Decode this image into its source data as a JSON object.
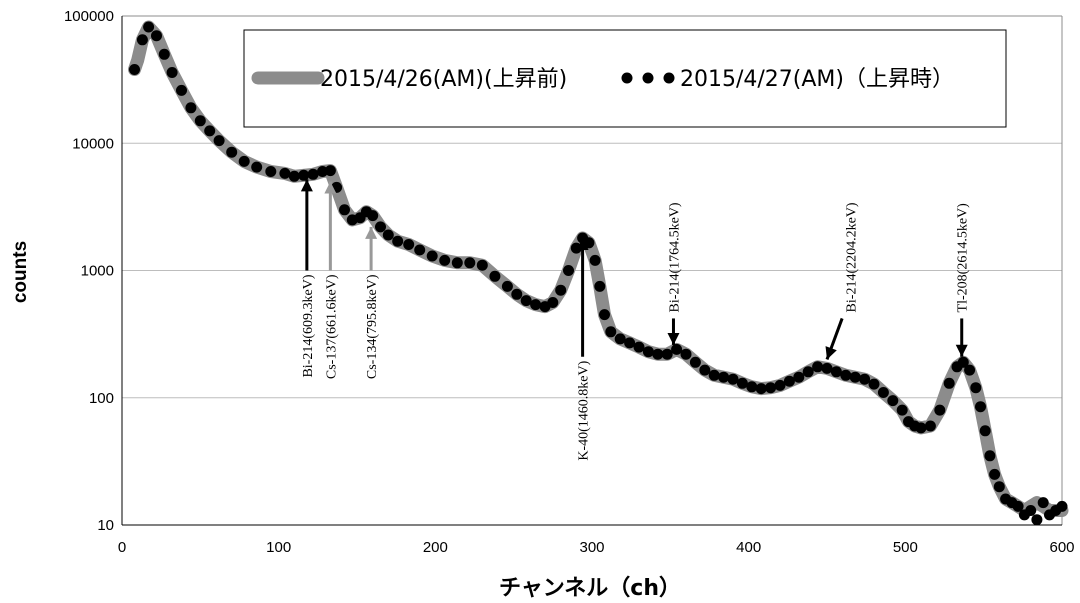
{
  "chart_data": {
    "type": "scatter",
    "title": "",
    "xlabel": "チャンネル（ch）",
    "ylabel": "counts",
    "xlim": [
      0,
      600
    ],
    "ylim": [
      10,
      100000
    ],
    "y_scale": "log",
    "grid": "horizontal",
    "legend_position": "top",
    "x_ticks": [
      "0",
      "100",
      "200",
      "300",
      "400",
      "500",
      "600"
    ],
    "y_ticks": [
      "10",
      "100",
      "1000",
      "10000",
      "100000"
    ],
    "colors": {
      "series1": "#8c8c8c",
      "series2": "#000000",
      "arrow_gray": "#999999",
      "arrow_black": "#000000",
      "grid": "#bdbdbd"
    },
    "series": [
      {
        "name": "2015/4/26(AM)(上昇前)",
        "style": "thick-line",
        "x": [
          8,
          10,
          13,
          17,
          22,
          27,
          32,
          38,
          44,
          50,
          56,
          62,
          70,
          78,
          86,
          95,
          104,
          110,
          116,
          122,
          128,
          133,
          137,
          142,
          147,
          152,
          156,
          160,
          165,
          170,
          176,
          183,
          190,
          198,
          206,
          214,
          222,
          230,
          238,
          246,
          252,
          258,
          264,
          270,
          275,
          280,
          285,
          290,
          294,
          298,
          302,
          305,
          308,
          312,
          318,
          324,
          330,
          336,
          342,
          348,
          354,
          360,
          366,
          372,
          378,
          384,
          390,
          396,
          402,
          408,
          414,
          420,
          426,
          432,
          438,
          444,
          450,
          456,
          462,
          468,
          474,
          480,
          486,
          492,
          498,
          502,
          506,
          510,
          516,
          522,
          528,
          533,
          537,
          541,
          545,
          548,
          551,
          554,
          557,
          560,
          564,
          568,
          572,
          576,
          580,
          584,
          588,
          592,
          596,
          600
        ],
        "values": [
          38000,
          45000,
          65000,
          82000,
          70000,
          50000,
          36000,
          26000,
          19000,
          15000,
          12500,
          10500,
          8500,
          7200,
          6500,
          6000,
          5800,
          5500,
          5600,
          5700,
          6000,
          6100,
          4500,
          3000,
          2500,
          2600,
          2900,
          2700,
          2200,
          1900,
          1700,
          1600,
          1450,
          1300,
          1200,
          1150,
          1150,
          1100,
          900,
          750,
          650,
          580,
          540,
          520,
          560,
          700,
          1000,
          1500,
          1800,
          1650,
          1200,
          750,
          450,
          330,
          290,
          270,
          250,
          230,
          220,
          220,
          240,
          220,
          190,
          165,
          150,
          145,
          140,
          130,
          122,
          118,
          120,
          125,
          135,
          145,
          160,
          175,
          170,
          160,
          150,
          145,
          140,
          128,
          110,
          95,
          80,
          65,
          60,
          58,
          60,
          80,
          130,
          175,
          190,
          165,
          120,
          85,
          55,
          35,
          25,
          20,
          16,
          15,
          14,
          13,
          14,
          15,
          14,
          13,
          13,
          13
        ]
      },
      {
        "name": "2015/4/27(AM)（上昇時）",
        "style": "dots",
        "x": [
          8,
          13,
          17,
          22,
          27,
          32,
          38,
          44,
          50,
          56,
          62,
          70,
          78,
          86,
          95,
          104,
          110,
          116,
          122,
          128,
          133,
          137,
          142,
          147,
          152,
          156,
          160,
          165,
          170,
          176,
          183,
          190,
          198,
          206,
          214,
          222,
          230,
          238,
          246,
          252,
          258,
          264,
          270,
          275,
          280,
          285,
          290,
          294,
          298,
          302,
          305,
          308,
          312,
          318,
          324,
          330,
          336,
          342,
          348,
          354,
          360,
          366,
          372,
          378,
          384,
          390,
          396,
          402,
          408,
          414,
          420,
          426,
          432,
          438,
          444,
          450,
          456,
          462,
          468,
          474,
          480,
          486,
          492,
          498,
          502,
          506,
          510,
          516,
          522,
          528,
          533,
          537,
          541,
          545,
          548,
          551,
          554,
          557,
          560,
          564,
          568,
          572,
          576,
          580,
          584,
          588,
          592,
          596,
          600
        ],
        "values": [
          38000,
          65000,
          82000,
          70000,
          50000,
          36000,
          26000,
          19000,
          15000,
          12500,
          10500,
          8500,
          7200,
          6500,
          6000,
          5800,
          5500,
          5600,
          5700,
          6000,
          6100,
          4500,
          3000,
          2500,
          2600,
          2900,
          2700,
          2200,
          1900,
          1700,
          1600,
          1450,
          1300,
          1200,
          1150,
          1150,
          1100,
          900,
          750,
          650,
          580,
          540,
          520,
          560,
          700,
          1000,
          1500,
          1800,
          1650,
          1200,
          750,
          450,
          330,
          290,
          270,
          250,
          230,
          220,
          220,
          240,
          220,
          190,
          165,
          150,
          145,
          140,
          130,
          122,
          118,
          120,
          125,
          135,
          145,
          160,
          175,
          170,
          160,
          150,
          145,
          140,
          128,
          110,
          95,
          80,
          65,
          60,
          58,
          60,
          80,
          130,
          175,
          190,
          165,
          120,
          85,
          55,
          35,
          25,
          20,
          16,
          15,
          14,
          12,
          13,
          11,
          15,
          12,
          13,
          14
        ]
      }
    ],
    "annotations": [
      {
        "text": "Bi-214(609.3keV)",
        "arrow_x": 118,
        "arrow_tail": 1000,
        "arrow_head": 5200,
        "color": "black",
        "label_x": 118
      },
      {
        "text": "Cs-137(661.6keV)",
        "arrow_x": 133,
        "arrow_tail": 1000,
        "arrow_head": 5000,
        "color": "gray",
        "label_x": 133
      },
      {
        "text": "Cs-134(795.8keV)",
        "arrow_x": 159,
        "arrow_tail": 1000,
        "arrow_head": 2200,
        "color": "gray",
        "label_x": 159
      },
      {
        "text": "K-40(1460.8keV)",
        "arrow_x": 294,
        "arrow_tail": 210,
        "arrow_head": 1800,
        "color": "black",
        "label_x": 294
      },
      {
        "text": "Bi-214(1764.5keV)",
        "arrow_x": 352,
        "arrow_tail": 420,
        "arrow_head": 260,
        "color": "black",
        "label_x": 352
      },
      {
        "text": "Bi-214(2204.2keV)",
        "arrow_x": 450,
        "arrow_tail": 420,
        "arrow_head": 200,
        "color": "black",
        "label_x": 465,
        "diagonal_from_x": 452
      },
      {
        "text": "Tl-208(2614.5keV)",
        "arrow_x": 536,
        "arrow_tail": 420,
        "arrow_head": 210,
        "color": "black",
        "label_x": 536
      }
    ]
  }
}
